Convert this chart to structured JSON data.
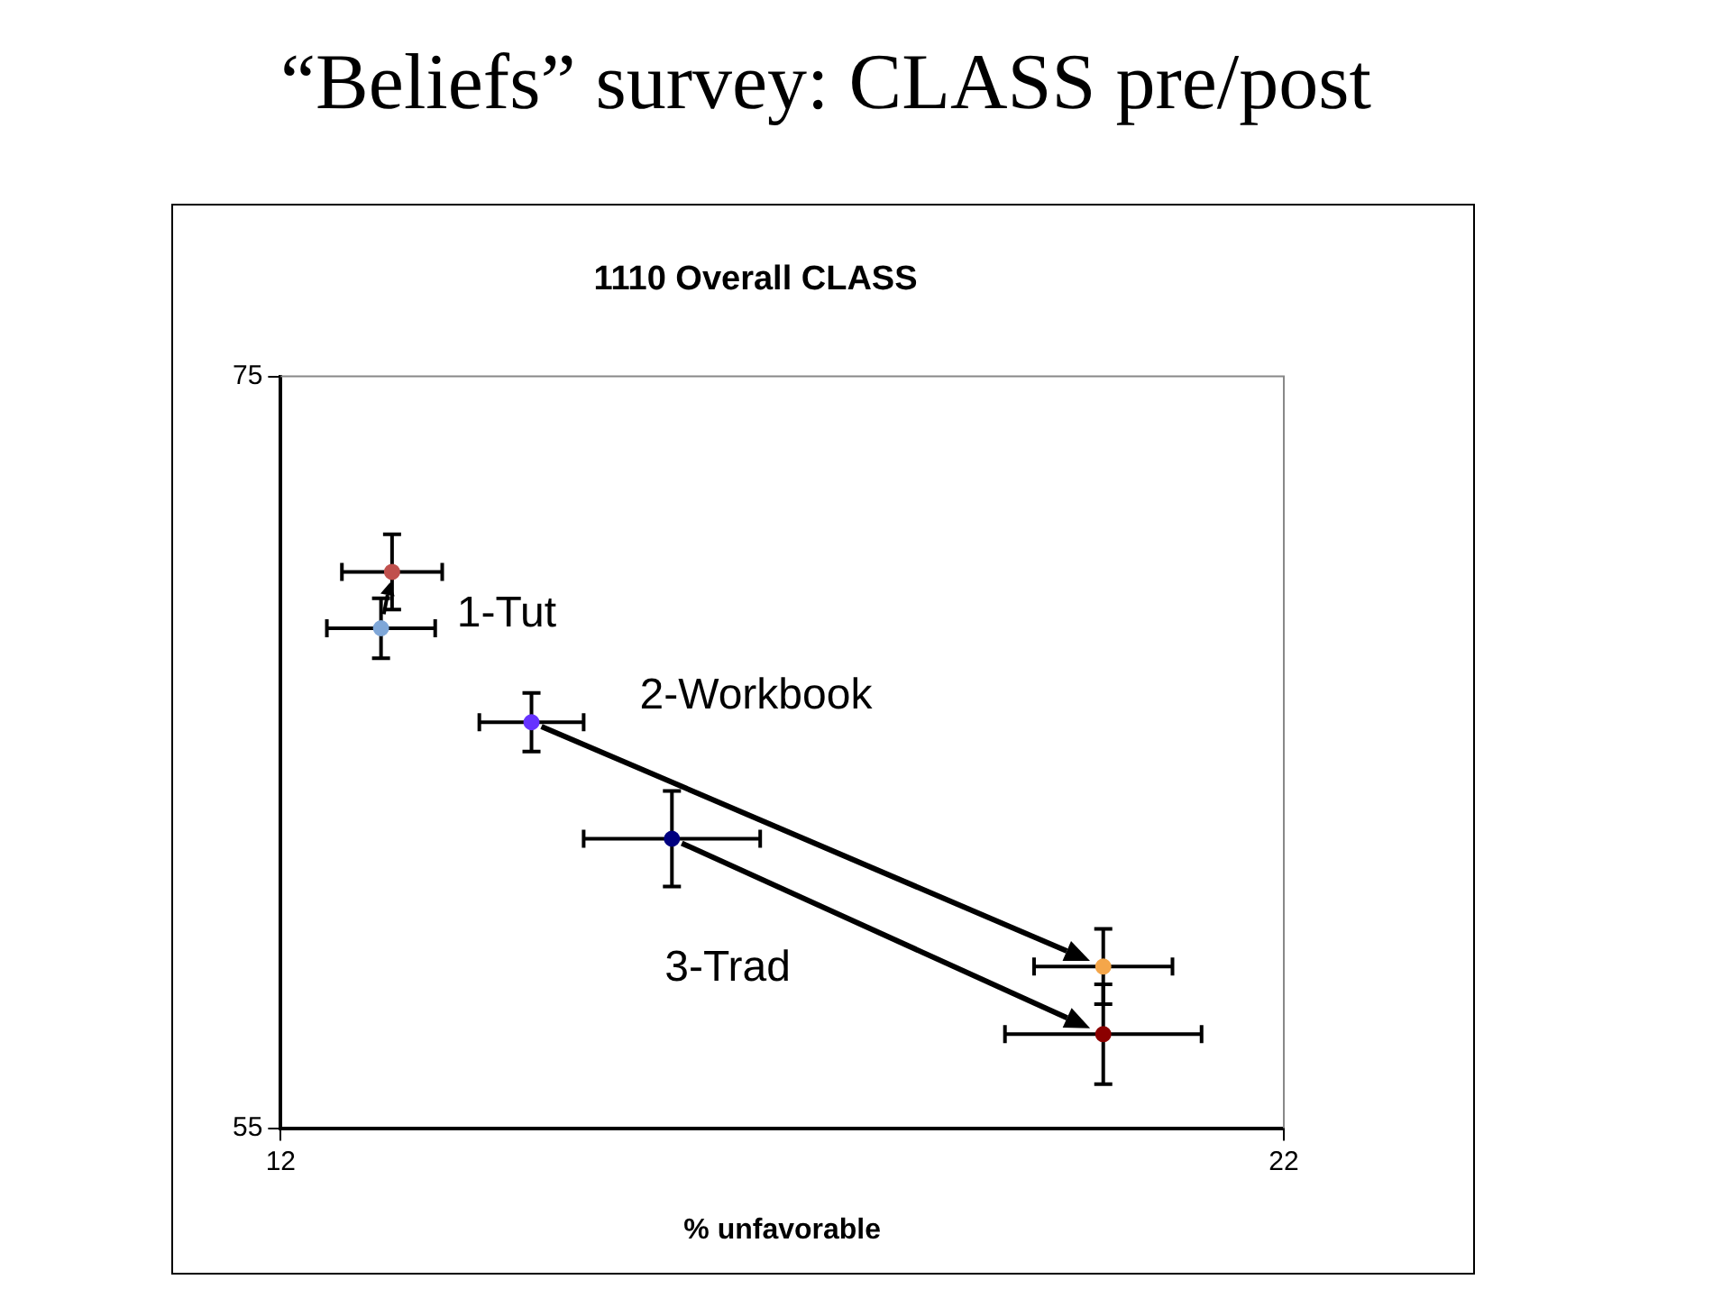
{
  "chart_data": {
    "type": "scatter",
    "title": "“Beliefs” survey: CLASS pre/post",
    "subtitle": "1110 Overall CLASS",
    "xlabel": "% unfavorable",
    "xlim": [
      12,
      22
    ],
    "xticks": [
      12,
      22
    ],
    "ylim": [
      55,
      75
    ],
    "yticks": [
      55,
      75
    ],
    "grid": false,
    "legend": false,
    "marker": "circle",
    "series": [
      {
        "name": "1-Tut",
        "x": [
          13.0,
          13.11
        ],
        "values": [
          68.3,
          69.8
        ],
        "colors": [
          "#7fa7d8",
          "#c0504d"
        ],
        "xerrors": [
          0.54,
          0.5
        ],
        "errors": [
          0.8,
          1.0
        ]
      },
      {
        "name": "2-Workbook",
        "x": [
          14.5,
          20.2
        ],
        "values": [
          65.8,
          59.3
        ],
        "colors": [
          "#6633ff",
          "#f4a64a"
        ],
        "xerrors": [
          0.52,
          0.69
        ],
        "errors": [
          0.78,
          1.0
        ]
      },
      {
        "name": "3-Trad",
        "x": [
          15.9,
          20.2
        ],
        "values": [
          62.7,
          57.5
        ],
        "colors": [
          "#000080",
          "#8b0000"
        ],
        "xerrors": [
          0.88,
          0.98
        ],
        "errors": [
          1.27,
          1.33
        ]
      }
    ]
  }
}
